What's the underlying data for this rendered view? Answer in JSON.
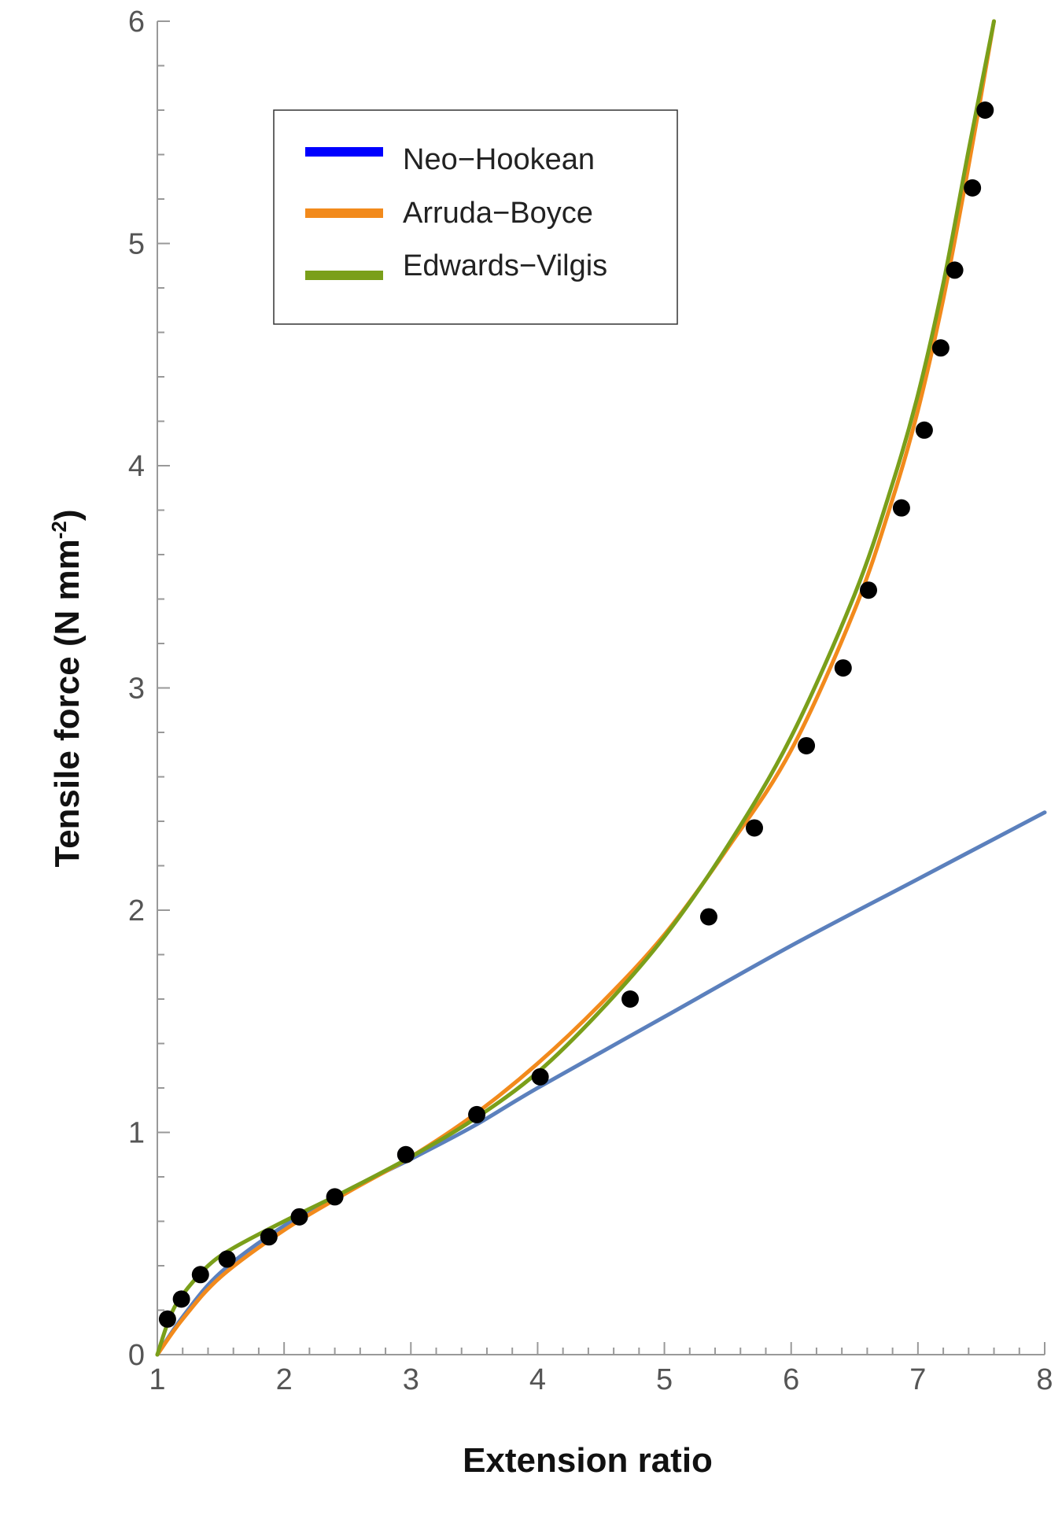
{
  "chart_data": {
    "type": "line",
    "title": "",
    "xlabel": "Extension ratio",
    "ylabel_main": "Tensile force (N mm",
    "ylabel_sup": "-2",
    "ylabel_close": ")",
    "xlim": [
      1,
      8
    ],
    "ylim": [
      0,
      6
    ],
    "x_ticks": [
      "1",
      "2",
      "3",
      "4",
      "5",
      "6",
      "7",
      "8"
    ],
    "y_ticks": [
      "0",
      "1",
      "2",
      "3",
      "4",
      "5",
      "6"
    ],
    "legend_position": "top-left",
    "series": [
      {
        "name": "Neo−Hookean",
        "color": "#5b80bd",
        "legend_color": "#0000ff"
      },
      {
        "name": "Arruda−Boyce",
        "color": "#f28a1c",
        "legend_color": "#f28a1c"
      },
      {
        "name": "Edwards−Vilgis",
        "color": "#7a9f1a",
        "legend_color": "#7a9f1a"
      }
    ],
    "curves": {
      "neo_hookean": {
        "x": [
          1.0,
          1.2,
          1.5,
          2.0,
          2.5,
          3.0,
          3.5,
          4.0,
          5.0,
          6.0,
          7.0,
          8.0
        ],
        "y": [
          0.0,
          0.17,
          0.37,
          0.58,
          0.74,
          0.88,
          1.03,
          1.2,
          1.52,
          1.84,
          2.14,
          2.44
        ]
      },
      "arruda_boyce": {
        "x": [
          1.0,
          1.2,
          1.5,
          2.0,
          2.5,
          3.0,
          3.5,
          4.0,
          4.5,
          5.0,
          5.5,
          6.0,
          6.5,
          6.8,
          7.0,
          7.2,
          7.4,
          7.6
        ],
        "y": [
          0.0,
          0.16,
          0.35,
          0.56,
          0.73,
          0.89,
          1.08,
          1.31,
          1.58,
          1.89,
          2.28,
          2.72,
          3.35,
          3.85,
          4.25,
          4.75,
          5.35,
          6.0
        ]
      },
      "edwards_vilgis": {
        "x": [
          1.0,
          1.1,
          1.2,
          1.4,
          1.6,
          2.0,
          2.5,
          3.0,
          3.5,
          4.0,
          4.5,
          5.0,
          5.5,
          6.0,
          6.5,
          6.8,
          7.0,
          7.2,
          7.4,
          7.6
        ],
        "y": [
          0.0,
          0.17,
          0.27,
          0.4,
          0.48,
          0.6,
          0.74,
          0.89,
          1.06,
          1.27,
          1.55,
          1.88,
          2.29,
          2.78,
          3.42,
          3.92,
          4.32,
          4.82,
          5.42,
          6.0
        ]
      }
    },
    "points": {
      "x": [
        1.08,
        1.19,
        1.34,
        1.55,
        1.88,
        2.12,
        2.4,
        2.96,
        3.52,
        4.02,
        4.73,
        5.35,
        5.71,
        6.12,
        6.41,
        6.61,
        6.87,
        7.05,
        7.18,
        7.29,
        7.43,
        7.53
      ],
      "y": [
        0.16,
        0.25,
        0.36,
        0.43,
        0.53,
        0.62,
        0.71,
        0.9,
        1.08,
        1.25,
        1.6,
        1.97,
        2.37,
        2.74,
        3.09,
        3.44,
        3.81,
        4.16,
        4.53,
        4.88,
        5.25,
        5.6
      ],
      "color": "#000000"
    }
  }
}
